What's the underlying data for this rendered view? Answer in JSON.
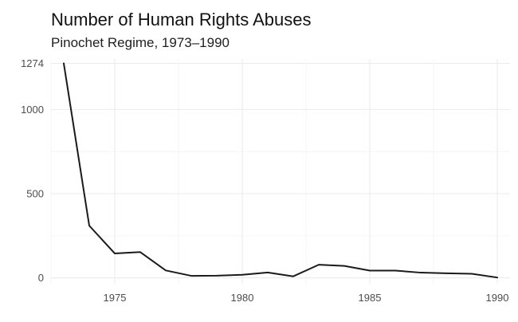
{
  "chart_data": {
    "type": "line",
    "title": "Number of Human Rights Abuses",
    "subtitle": "Pinochet Regime, 1973–1990",
    "xlabel": "",
    "ylabel": "",
    "xlim": [
      1972.5,
      1990.5
    ],
    "ylim": [
      -35,
      1300
    ],
    "grid": true,
    "legend": "none",
    "x_ticks": [
      1975,
      1980,
      1985,
      1990
    ],
    "x_minor_ticks": [
      1972.5,
      1977.5,
      1982.5,
      1987.5
    ],
    "y_ticks": [
      0,
      500,
      1000,
      1274
    ],
    "y_minor_ticks": [
      250,
      750
    ],
    "line_color": "#1a1a1a",
    "x": [
      1973,
      1974,
      1975,
      1976,
      1977,
      1978,
      1979,
      1980,
      1981,
      1982,
      1983,
      1984,
      1985,
      1986,
      1987,
      1988,
      1989,
      1990
    ],
    "y": [
      1274,
      310,
      145,
      153,
      44,
      12,
      13,
      18,
      32,
      9,
      78,
      71,
      43,
      43,
      31,
      27,
      24,
      2
    ]
  }
}
